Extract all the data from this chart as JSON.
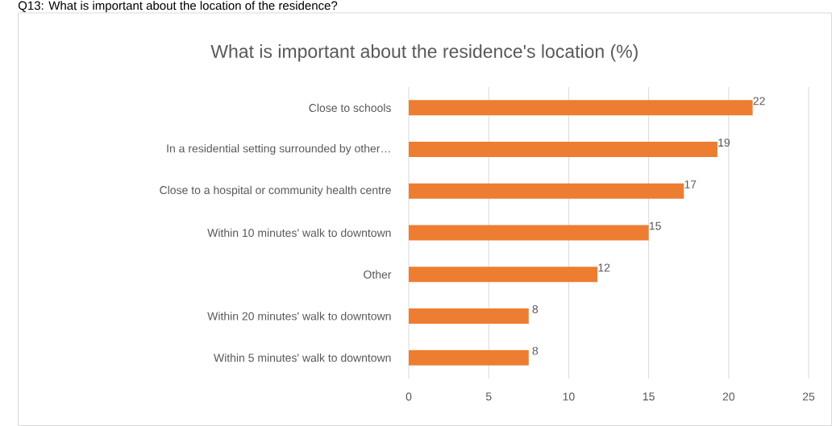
{
  "chart_data": {
    "type": "bar",
    "orientation": "horizontal",
    "title": "What is important about the residence's location (%)",
    "annotations": [
      "Q13: What is important about the location of the residence?"
    ],
    "categories": [
      "Close to schools",
      "In a residential setting surrounded by other…",
      "Close to a hospital or community health centre",
      "Within 10 minutes' walk to downtown",
      "Other",
      "Within 20 minutes' walk to downtown",
      "Within 5 minutes' walk to downtown"
    ],
    "values": [
      21.5,
      19.3,
      17.2,
      15.0,
      11.8,
      7.5,
      7.5
    ],
    "value_labels": [
      "22",
      "19",
      "17",
      "15",
      "12",
      "8",
      "8"
    ],
    "color": "#ed7d31",
    "xlim": [
      0,
      25
    ],
    "xticks": [
      0,
      5,
      10,
      15,
      20,
      25
    ],
    "grid": "x"
  }
}
